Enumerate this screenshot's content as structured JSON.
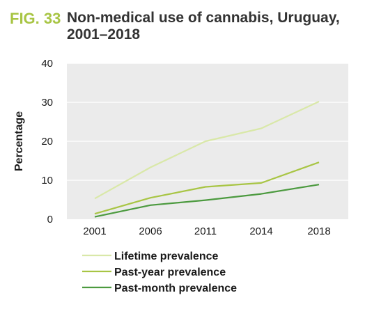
{
  "figure": {
    "label": "FIG. 33",
    "title": "Non-medical use of cannabis, Uruguay, 2001–2018"
  },
  "chart_data": {
    "type": "line",
    "categories": [
      "2001",
      "2006",
      "2011",
      "2014",
      "2018"
    ],
    "series": [
      {
        "name": "Lifetime prevalence",
        "values": [
          5.3,
          13.3,
          20.0,
          23.3,
          30.2
        ],
        "color": "#d9e8a8"
      },
      {
        "name": "Past-year prevalence",
        "values": [
          1.4,
          5.5,
          8.3,
          9.3,
          14.6
        ],
        "color": "#a8c544"
      },
      {
        "name": "Past-month prevalence",
        "values": [
          0.6,
          3.6,
          4.9,
          6.5,
          8.9
        ],
        "color": "#4c9a3f"
      }
    ],
    "ylabel": "Percentage",
    "xlabel": "",
    "ylim": [
      0,
      40
    ],
    "yticks": [
      0,
      10,
      20,
      30,
      40
    ],
    "grid": true,
    "plot_background": "#ebebeb",
    "grid_color": "#ffffff",
    "legend_position": "bottom"
  }
}
